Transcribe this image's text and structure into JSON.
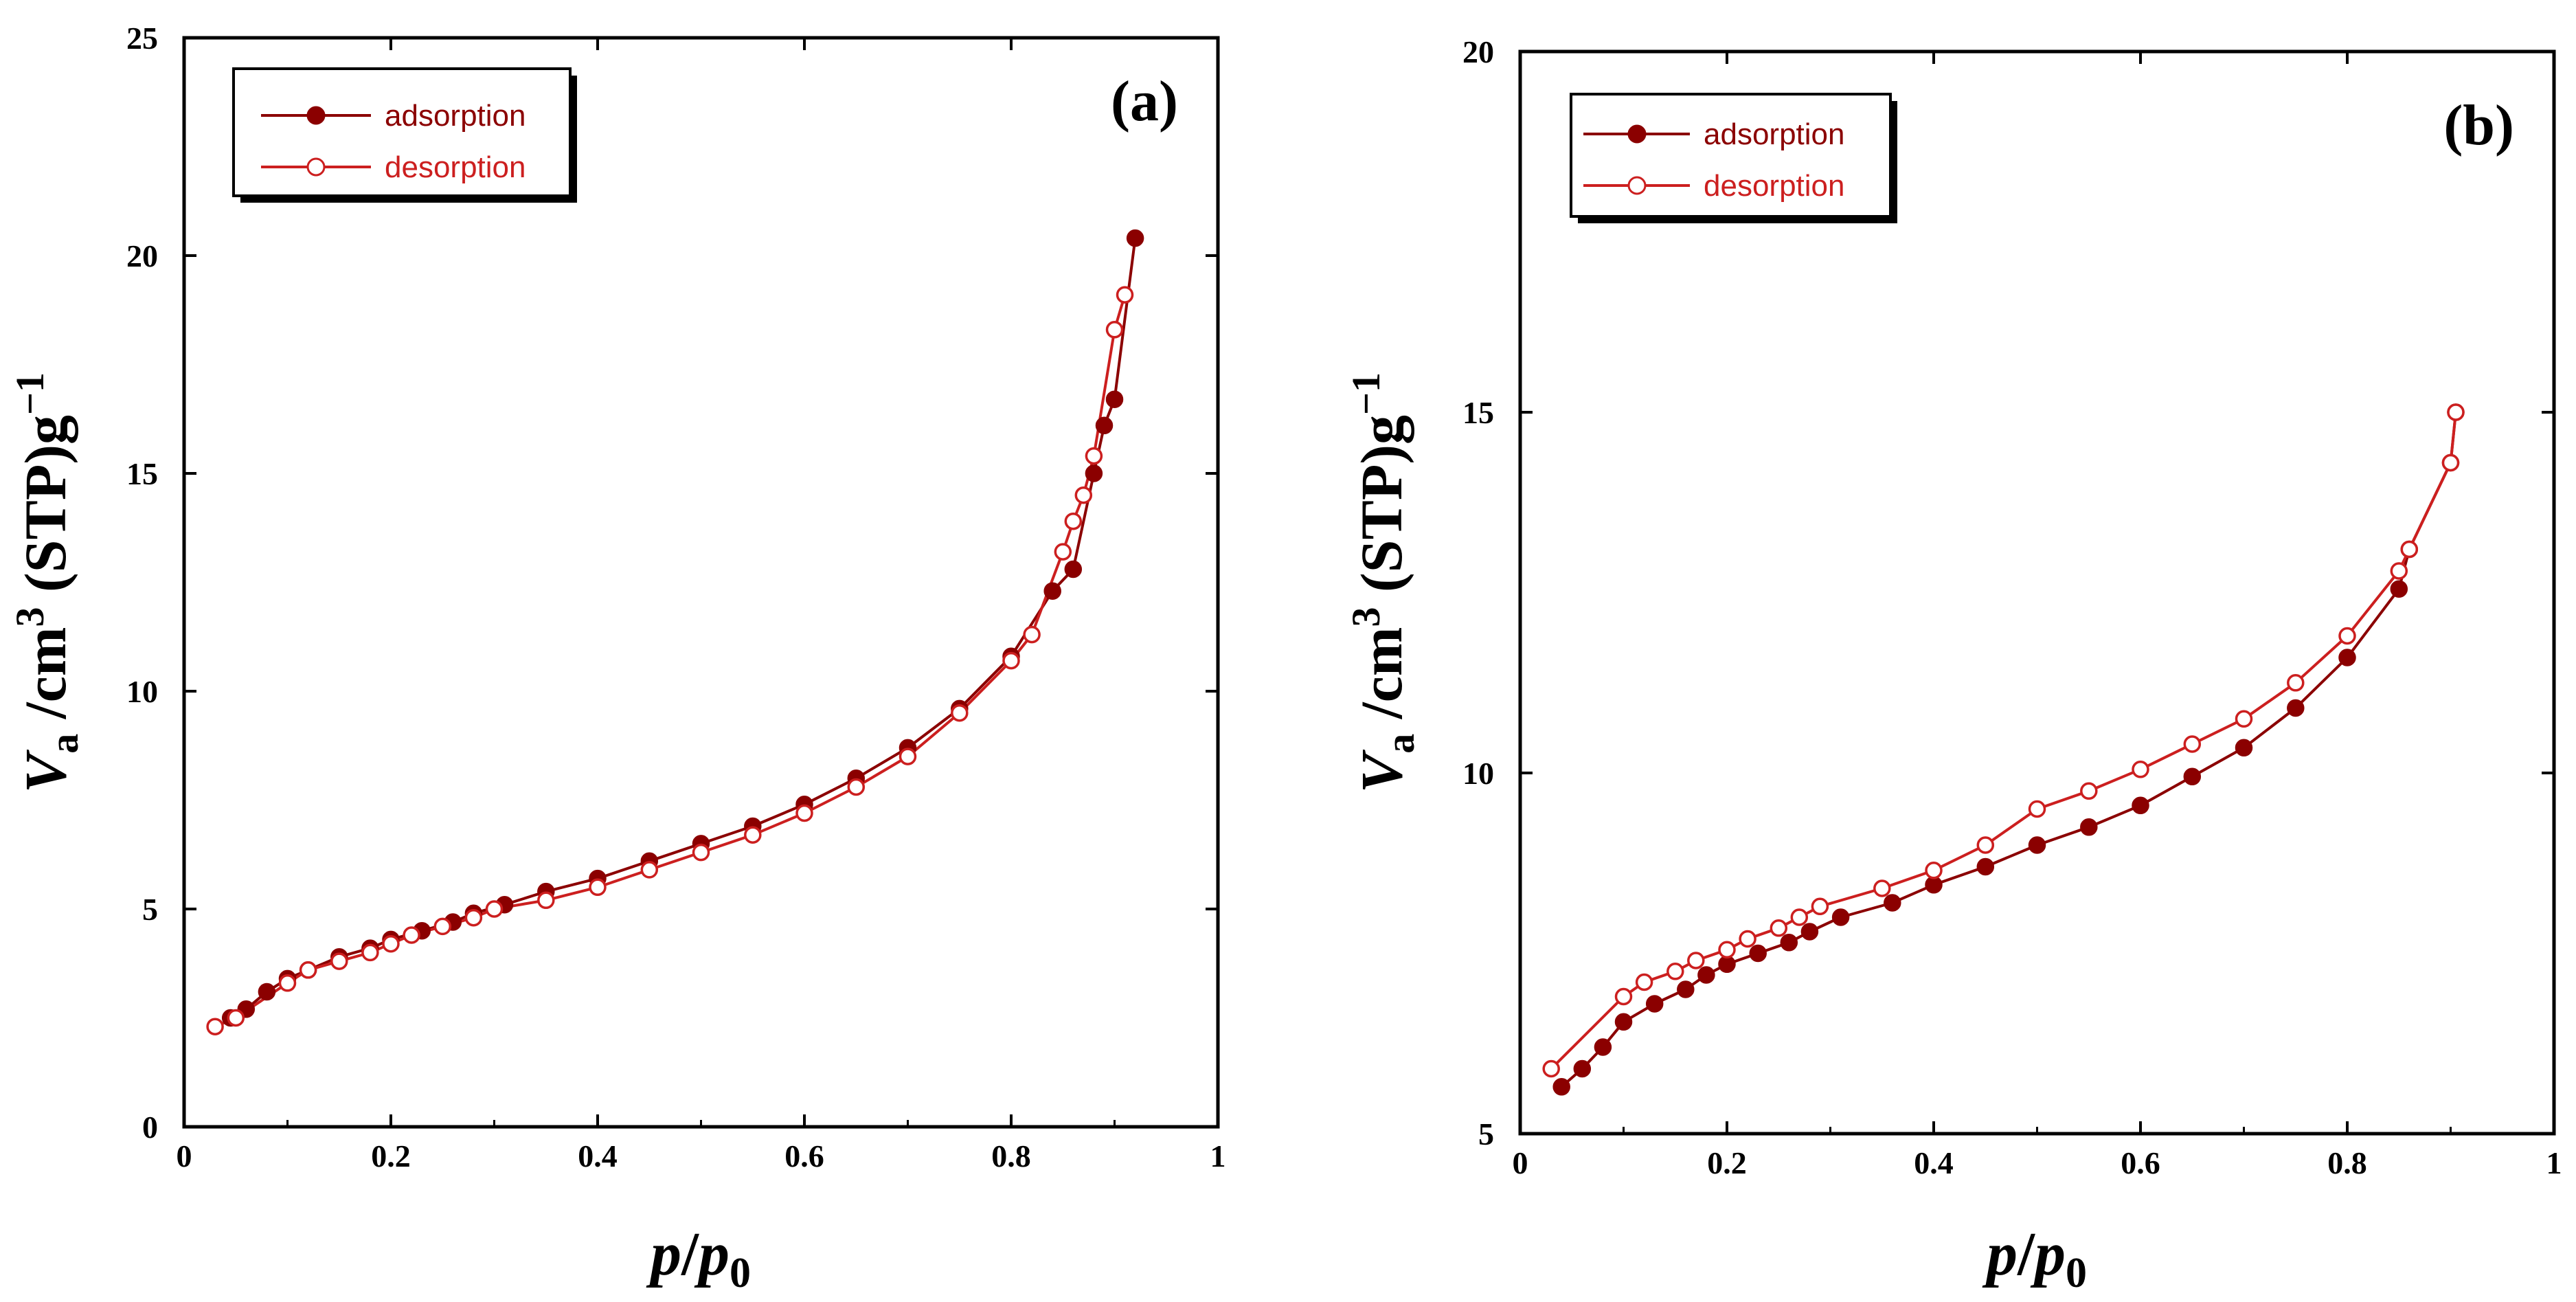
{
  "colors": {
    "adsorption": "#8b0000",
    "desorption": "#cc1f1f",
    "frame": "#000000"
  },
  "chart_data": [
    {
      "type": "line",
      "panel_label": "(a)",
      "xlabel": "p/p0",
      "ylabel": "Va /cm3 (STP)g−1",
      "xlim": [
        0,
        1
      ],
      "ylim": [
        0,
        25
      ],
      "xticks": [
        0,
        0.2,
        0.4,
        0.6,
        0.8,
        1
      ],
      "xtick_labels": [
        "0",
        "0.2",
        "0.4",
        "0.6",
        "0.8",
        "1"
      ],
      "yticks": [
        0,
        5,
        10,
        15,
        20,
        25
      ],
      "ytick_labels": [
        "0",
        "5",
        "10",
        "15",
        "20",
        "25"
      ],
      "legend_position": "top-left",
      "series": [
        {
          "name": "adsorption",
          "marker": "filled-circle",
          "x": [
            0.045,
            0.06,
            0.08,
            0.1,
            0.12,
            0.15,
            0.18,
            0.2,
            0.23,
            0.26,
            0.28,
            0.31,
            0.35,
            0.4,
            0.45,
            0.5,
            0.55,
            0.6,
            0.65,
            0.7,
            0.75,
            0.8,
            0.84,
            0.86,
            0.88,
            0.89,
            0.9,
            0.92
          ],
          "y": [
            2.5,
            2.7,
            3.1,
            3.4,
            3.6,
            3.9,
            4.1,
            4.3,
            4.5,
            4.7,
            4.9,
            5.1,
            5.4,
            5.7,
            6.1,
            6.5,
            6.9,
            7.4,
            8.0,
            8.7,
            9.6,
            10.8,
            12.3,
            12.8,
            15.0,
            16.1,
            16.7,
            20.4
          ]
        },
        {
          "name": "desorption",
          "marker": "open-circle",
          "x": [
            0.03,
            0.05,
            0.1,
            0.12,
            0.15,
            0.18,
            0.2,
            0.22,
            0.25,
            0.28,
            0.3,
            0.35,
            0.4,
            0.45,
            0.5,
            0.55,
            0.6,
            0.65,
            0.7,
            0.75,
            0.8,
            0.82,
            0.85,
            0.86,
            0.87,
            0.88,
            0.9,
            0.91
          ],
          "y": [
            2.3,
            2.5,
            3.3,
            3.6,
            3.8,
            4.0,
            4.2,
            4.4,
            4.6,
            4.8,
            5.0,
            5.2,
            5.5,
            5.9,
            6.3,
            6.7,
            7.2,
            7.8,
            8.5,
            9.5,
            10.7,
            11.3,
            13.2,
            13.9,
            14.5,
            15.4,
            18.3,
            19.1
          ]
        }
      ]
    },
    {
      "type": "line",
      "panel_label": "(b)",
      "xlabel": "p/p0",
      "ylabel": "Va /cm3 (STP)g−1",
      "xlim": [
        0,
        1
      ],
      "ylim": [
        5,
        20
      ],
      "xticks": [
        0,
        0.2,
        0.4,
        0.6,
        0.8,
        1
      ],
      "xtick_labels": [
        "0",
        "0.2",
        "0.4",
        "0.6",
        "0.8",
        "1"
      ],
      "yticks": [
        5,
        10,
        15,
        20
      ],
      "ytick_labels": [
        "5",
        "10",
        "15",
        "20"
      ],
      "legend_position": "top-left",
      "series": [
        {
          "name": "adsorption",
          "marker": "filled-circle",
          "x": [
            0.04,
            0.06,
            0.08,
            0.1,
            0.13,
            0.16,
            0.18,
            0.2,
            0.23,
            0.26,
            0.28,
            0.31,
            0.36,
            0.4,
            0.45,
            0.5,
            0.55,
            0.6,
            0.65,
            0.7,
            0.75,
            0.8,
            0.85,
            0.86,
            0.9,
            0.905
          ],
          "y": [
            5.65,
            5.9,
            6.2,
            6.55,
            6.8,
            7.0,
            7.2,
            7.35,
            7.5,
            7.65,
            7.8,
            8.0,
            8.2,
            8.45,
            8.7,
            9.0,
            9.25,
            9.55,
            9.95,
            10.35,
            10.9,
            11.6,
            12.55,
            13.1,
            14.3,
            15.0
          ]
        },
        {
          "name": "desorption",
          "marker": "open-circle",
          "x": [
            0.03,
            0.1,
            0.12,
            0.15,
            0.17,
            0.2,
            0.22,
            0.25,
            0.27,
            0.29,
            0.35,
            0.4,
            0.45,
            0.5,
            0.55,
            0.6,
            0.65,
            0.7,
            0.75,
            0.8,
            0.85,
            0.86,
            0.9,
            0.905
          ],
          "y": [
            5.9,
            6.9,
            7.1,
            7.25,
            7.4,
            7.55,
            7.7,
            7.85,
            8.0,
            8.15,
            8.4,
            8.65,
            9.0,
            9.5,
            9.75,
            10.05,
            10.4,
            10.75,
            11.25,
            11.9,
            12.8,
            13.1,
            14.3,
            15.0
          ]
        }
      ]
    }
  ]
}
